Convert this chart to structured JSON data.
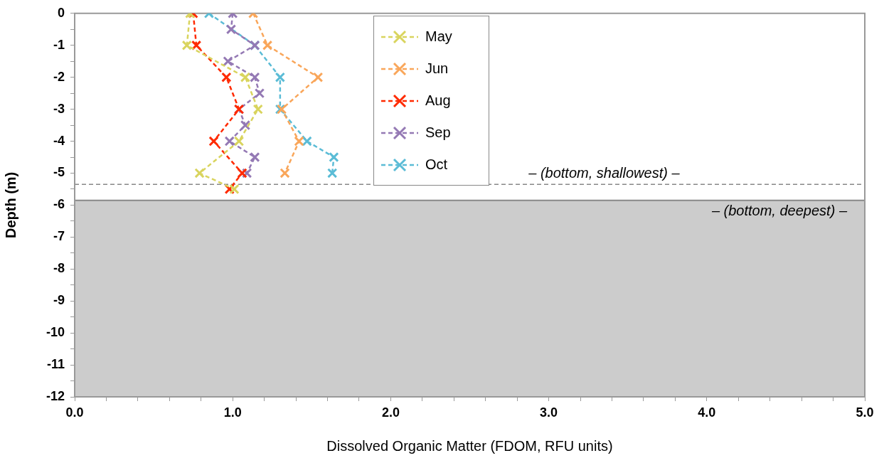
{
  "chart_data": {
    "type": "line",
    "xlabel": "Dissolved Organic Matter (FDOM, RFU units)",
    "ylabel": "Depth (m)",
    "xlim": [
      0,
      5
    ],
    "ylim": [
      -12,
      0
    ],
    "xticks": [
      {
        "value": 0,
        "label": "0.0"
      },
      {
        "value": 0.2,
        "label": null
      },
      {
        "value": 0.4,
        "label": null
      },
      {
        "value": 0.6,
        "label": null
      },
      {
        "value": 0.8,
        "label": null
      },
      {
        "value": 1,
        "label": "1.0"
      },
      {
        "value": 1.2,
        "label": null
      },
      {
        "value": 1.4,
        "label": null
      },
      {
        "value": 1.6,
        "label": null
      },
      {
        "value": 1.8,
        "label": null
      },
      {
        "value": 2,
        "label": "2.0"
      },
      {
        "value": 2.2,
        "label": null
      },
      {
        "value": 2.4,
        "label": null
      },
      {
        "value": 2.6,
        "label": null
      },
      {
        "value": 2.8,
        "label": null
      },
      {
        "value": 3,
        "label": "3.0"
      },
      {
        "value": 3.2,
        "label": null
      },
      {
        "value": 3.4,
        "label": null
      },
      {
        "value": 3.6,
        "label": null
      },
      {
        "value": 3.8,
        "label": null
      },
      {
        "value": 4,
        "label": "4.0"
      },
      {
        "value": 4.2,
        "label": null
      },
      {
        "value": 4.4,
        "label": null
      },
      {
        "value": 4.6,
        "label": null
      },
      {
        "value": 4.8,
        "label": null
      },
      {
        "value": 5,
        "label": "5.0"
      }
    ],
    "yticks": [
      -12,
      {
        "value": -11.5,
        "label": null
      },
      -11,
      {
        "value": -10.5,
        "label": null
      },
      -10,
      {
        "value": -9.5,
        "label": null
      },
      -9,
      {
        "value": -8.5,
        "label": null
      },
      -8,
      {
        "value": -7.5,
        "label": null
      },
      -7,
      {
        "value": -6.5,
        "label": null
      },
      -6,
      {
        "value": -5.5,
        "label": null
      },
      -5,
      {
        "value": -4.5,
        "label": null
      },
      -4,
      {
        "value": -3.5,
        "label": null
      },
      -3,
      {
        "value": -2.5,
        "label": null
      },
      -2,
      {
        "value": -1.5,
        "label": null
      },
      -1,
      {
        "value": -0.5,
        "label": null
      },
      0
    ],
    "grid": false,
    "legend": "top",
    "marker": "cross",
    "line_style": "dashed",
    "series": [
      {
        "name": "May",
        "color": "#d9d45e",
        "x": [
          0.73,
          0.71,
          1.08,
          1.16,
          1.04,
          0.79,
          1.01
        ],
        "values": [
          0,
          -1,
          -2,
          -3,
          -4,
          -5,
          -5.5
        ]
      },
      {
        "name": "Jun",
        "color": "#f9a65a",
        "x": [
          1.13,
          1.22,
          1.54,
          1.31,
          1.42,
          1.33
        ],
        "values": [
          0,
          -1,
          -2,
          -3,
          -4,
          -5
        ]
      },
      {
        "name": "Aug",
        "color": "#ff2a00",
        "x": [
          0.75,
          0.77,
          0.96,
          1.04,
          0.88,
          1.06,
          0.98
        ],
        "values": [
          0,
          -1,
          -2,
          -3,
          -4,
          -5,
          -5.5
        ]
      },
      {
        "name": "Sep",
        "color": "#9479b4",
        "x": [
          1.0,
          0.99,
          1.14,
          0.97,
          1.14,
          1.17,
          1.04,
          1.08,
          0.98,
          1.14,
          1.09
        ],
        "values": [
          0,
          -0.5,
          -1,
          -1.5,
          -2,
          -2.5,
          -3,
          -3.5,
          -4,
          -4.5,
          -5
        ]
      },
      {
        "name": "Oct",
        "color": "#5bbcd6",
        "x": [
          0.85,
          1.14,
          1.3,
          1.3,
          1.47,
          1.64,
          1.63
        ],
        "values": [
          0,
          -1,
          -2,
          -3,
          -4,
          -4.5,
          -5
        ]
      }
    ],
    "ref_lines": [
      {
        "axis": "y",
        "value": -5.35,
        "label": "– (bottom, shallowest) –",
        "color": "#888888",
        "line_style": "dashed"
      },
      {
        "axis": "y",
        "value": -5.85,
        "color": "#888888",
        "line_style": "solid"
      }
    ],
    "bands": [
      {
        "axis": "y",
        "from": -12,
        "to": -5.85,
        "label": "– (bottom, deepest) –",
        "color": "#cccccc"
      }
    ]
  }
}
